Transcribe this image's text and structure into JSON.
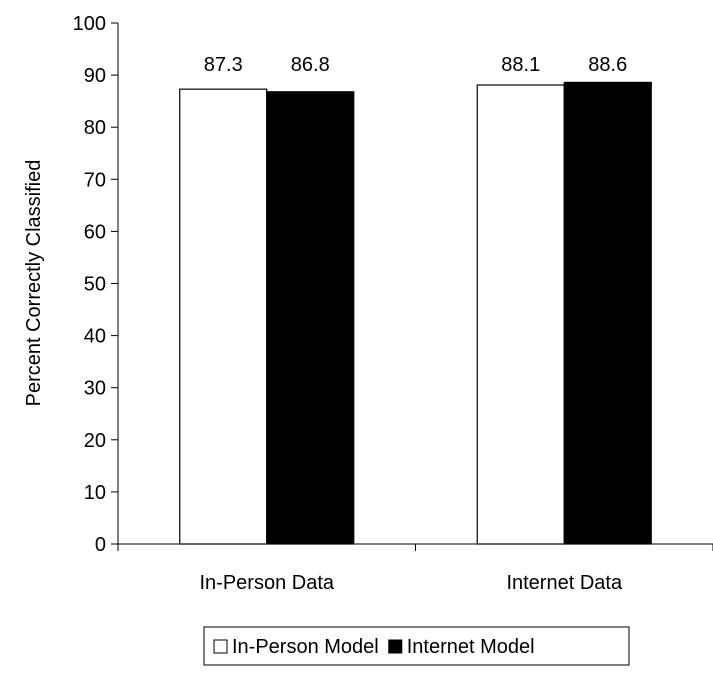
{
  "chart_data": {
    "type": "bar",
    "categories": [
      "In-Person Data",
      "Internet Data"
    ],
    "series": [
      {
        "name": "In-Person Model",
        "values": [
          87.3,
          88.1
        ],
        "color": "#ffffff"
      },
      {
        "name": "Internet Model",
        "values": [
          86.8,
          88.6
        ],
        "color": "#000000"
      }
    ],
    "data_labels": [
      [
        "87.3",
        "88.1"
      ],
      [
        "86.8",
        "88.6"
      ]
    ],
    "ylabel": "Percent Correctly Classified",
    "ylim": [
      0,
      100
    ],
    "yticks": [
      0,
      10,
      20,
      30,
      40,
      50,
      60,
      70,
      80,
      90,
      100
    ],
    "grid": false,
    "legend_position": "bottom"
  }
}
